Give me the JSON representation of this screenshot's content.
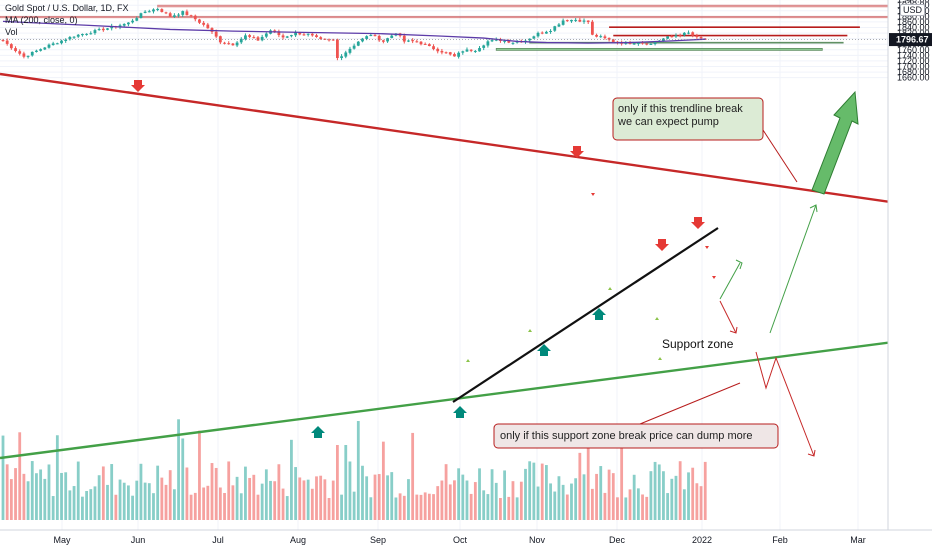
{
  "header": {
    "symbol_line": "Gold Spot / U.S. Dollar, 1D, FX",
    "ma_line": "MA (200, close, 0)",
    "vol_line": "Vol"
  },
  "currency_badge": "USD",
  "last_price": "1796.67",
  "colors": {
    "up": "#26a69a",
    "down": "#ef5350",
    "ma": "#5c3ba8",
    "resistance_line": "#c62828",
    "support_line": "#43a047",
    "zone_red": "#e57373",
    "zone_green": "#66bb6a"
  },
  "annotations": {
    "callout_top_line1": "only if this trendline break",
    "callout_top_line2": "we can expect pump",
    "callout_bottom": "only if this support zone break price can dump more",
    "support_zone_label": "Support zone"
  },
  "chart_data": {
    "type": "candlestick",
    "x_tick_labels": [
      "May",
      "Jun",
      "Jul",
      "Aug",
      "Sep",
      "Oct",
      "Nov",
      "Dec",
      "2022",
      "Feb",
      "Mar"
    ],
    "y_tick_labels": [
      1960,
      1940,
      1920,
      1900,
      1880,
      1860,
      1840,
      1820,
      1800,
      1780,
      1760,
      1740,
      1720,
      1700,
      1680,
      1660
    ],
    "ylim": [
      1644,
      1972
    ],
    "last_close": 1796.67,
    "trendline_resistance": [
      [
        0,
        1876
      ],
      [
        1080,
        1836
      ]
    ],
    "trendline_support": [
      [
        0,
        1690
      ],
      [
        1080,
        1764
      ]
    ],
    "keypoints": [
      [
        0,
        1792
      ],
      [
        5,
        1735
      ],
      [
        10,
        1770
      ],
      [
        17,
        1810
      ],
      [
        23,
        1830
      ],
      [
        30,
        1856
      ],
      [
        34,
        1897
      ],
      [
        37,
        1908
      ],
      [
        40,
        1880
      ],
      [
        43,
        1895
      ],
      [
        46,
        1870
      ],
      [
        49,
        1838
      ],
      [
        52,
        1790
      ],
      [
        55,
        1780
      ],
      [
        58,
        1810
      ],
      [
        61,
        1795
      ],
      [
        64,
        1830
      ],
      [
        67,
        1805
      ],
      [
        70,
        1820
      ],
      [
        73,
        1815
      ],
      [
        76,
        1795
      ],
      [
        79,
        1795
      ],
      [
        80,
        1730
      ],
      [
        82,
        1752
      ],
      [
        85,
        1790
      ],
      [
        88,
        1815
      ],
      [
        91,
        1790
      ],
      [
        94,
        1822
      ],
      [
        96,
        1790
      ],
      [
        99,
        1790
      ],
      [
        102,
        1770
      ],
      [
        106,
        1748
      ],
      [
        108,
        1735
      ],
      [
        110,
        1757
      ],
      [
        113,
        1760
      ],
      [
        116,
        1790
      ],
      [
        119,
        1795
      ],
      [
        122,
        1787
      ],
      [
        125,
        1794
      ],
      [
        128,
        1818
      ],
      [
        131,
        1832
      ],
      [
        134,
        1866
      ],
      [
        137,
        1868
      ],
      [
        140,
        1860
      ],
      [
        141,
        1812
      ],
      [
        143,
        1805
      ],
      [
        146,
        1790
      ],
      [
        149,
        1783
      ],
      [
        152,
        1788
      ],
      [
        155,
        1780
      ],
      [
        158,
        1800
      ],
      [
        161,
        1812
      ],
      [
        164,
        1820
      ],
      [
        166,
        1802
      ],
      [
        168,
        1796.67
      ]
    ],
    "ma200": [
      [
        0,
        1862
      ],
      [
        20,
        1848
      ],
      [
        40,
        1833
      ],
      [
        55,
        1827
      ],
      [
        70,
        1823
      ],
      [
        90,
        1818
      ],
      [
        105,
        1809
      ],
      [
        115,
        1802
      ],
      [
        123,
        1790
      ],
      [
        130,
        1786
      ],
      [
        140,
        1784
      ],
      [
        150,
        1786
      ],
      [
        160,
        1792
      ],
      [
        168,
        1798
      ]
    ],
    "horizontal_levels": [
      {
        "type": "resistance_zone",
        "low": 1914,
        "high": 1920,
        "from": 37,
        "to": 230
      },
      {
        "type": "resistance_zone",
        "low": 1875,
        "high": 1880,
        "from": 0,
        "to": 230
      },
      {
        "type": "level",
        "value": 1841,
        "from": 145,
        "to": 205
      },
      {
        "type": "level",
        "value": 1811,
        "from": 146,
        "to": 202
      },
      {
        "type": "support_zone",
        "low": 1784,
        "high": 1787,
        "from": 126,
        "to": 201
      },
      {
        "type": "support_zone",
        "low": 1758,
        "high": 1765,
        "from": 118,
        "to": 196
      }
    ]
  }
}
